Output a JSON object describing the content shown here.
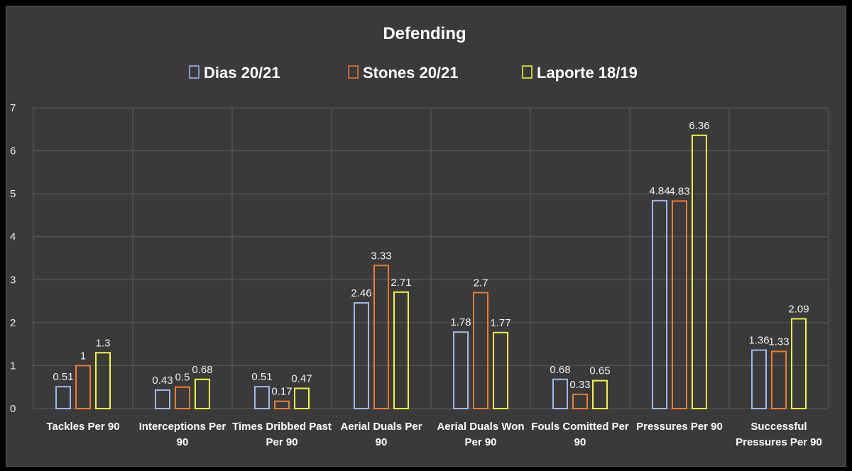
{
  "chart_data": {
    "type": "bar",
    "title": "Defending",
    "categories": [
      "Tackles Per 90",
      "Interceptions Per 90",
      "Times Dribbed Past Per 90",
      "Aerial Duals Per 90",
      "Aerial Duals Won Per 90",
      "Fouls Comitted Per 90",
      "Pressures Per 90",
      "Successful Pressures Per 90"
    ],
    "series": [
      {
        "name": "Dias 20/21",
        "color": "#9fb8f0",
        "values": [
          0.51,
          0.43,
          0.51,
          2.46,
          1.78,
          0.68,
          4.84,
          1.36
        ]
      },
      {
        "name": "Stones 20/21",
        "color": "#ed7d31",
        "values": [
          1,
          0.5,
          0.17,
          3.33,
          2.7,
          0.33,
          4.83,
          1.33
        ]
      },
      {
        "name": "Laporte 18/19",
        "color": "#f5f542",
        "values": [
          1.3,
          0.68,
          0.47,
          2.71,
          1.77,
          0.65,
          6.36,
          2.09
        ]
      }
    ],
    "ylim": [
      0,
      7
    ],
    "yticks": [
      0,
      1,
      2,
      3,
      4,
      5,
      6,
      7
    ],
    "xlabel": "",
    "ylabel": "",
    "legend": "top",
    "grid": true
  }
}
